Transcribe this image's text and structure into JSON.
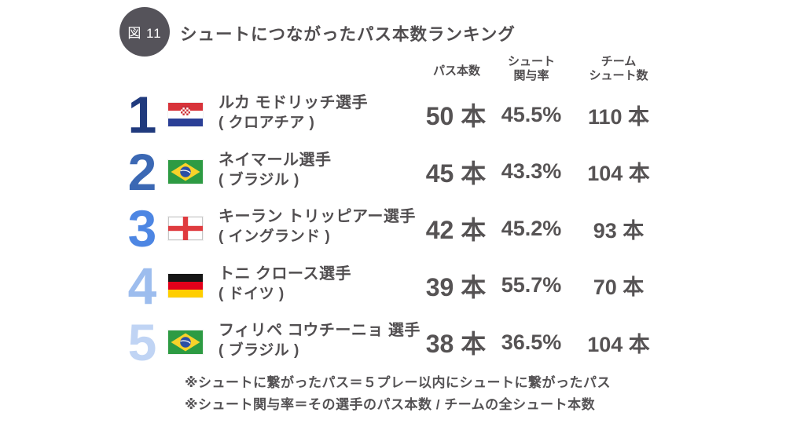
{
  "figure_label": "図 11",
  "title": "シュートにつながったパス本数ランキング",
  "columns": {
    "passes": "パス本数",
    "involvement_line1": "シュート",
    "involvement_line2": "関与率",
    "team_shots_line1": "チーム",
    "team_shots_line2": "シュート数"
  },
  "rows": [
    {
      "rank": "1",
      "rank_color": "#203a7d",
      "flag": "croatia",
      "name": "ルカ モドリッチ選手",
      "country": "( クロアチア )",
      "passes": "50 本",
      "involvement": "45.5%",
      "team_shots": "110 本"
    },
    {
      "rank": "2",
      "rank_color": "#3b68b4",
      "flag": "brazil",
      "name": "ネイマール選手",
      "country": "( ブラジル )",
      "passes": "45 本",
      "involvement": "43.3%",
      "team_shots": "104 本"
    },
    {
      "rank": "3",
      "rank_color": "#4d86e3",
      "flag": "england",
      "name": "キーラン トリッピアー選手",
      "country": "( イングランド )",
      "passes": "42 本",
      "involvement": "45.2%",
      "team_shots": "93 本"
    },
    {
      "rank": "4",
      "rank_color": "#9dbdee",
      "flag": "germany",
      "name": "トニ クロース選手",
      "country": "( ドイツ )",
      "passes": "39 本",
      "involvement": "55.7%",
      "team_shots": "70 本"
    },
    {
      "rank": "5",
      "rank_color": "#c0d4f4",
      "flag": "brazil",
      "name": "フィリペ コウチーニョ 選手",
      "country": "( ブラジル )",
      "passes": "38 本",
      "involvement": "36.5%",
      "team_shots": "104 本"
    }
  ],
  "footnotes": [
    "※シュートに繋がったパス＝５プレー以内にシュートに繋がったパス",
    "※シュート関与率＝その選手のパス本数 / チームの全シュート本数"
  ],
  "colors": {
    "badge_bg": "#55535a",
    "heading_text": "#4f4c4e",
    "value_text": "#565354",
    "rank_colors": [
      "#203a7d",
      "#3b68b4",
      "#4d86e3",
      "#9dbdee",
      "#c0d4f4"
    ]
  },
  "chart_data": {
    "type": "table",
    "title": "シュートにつながったパス本数ランキング",
    "columns": [
      "パス本数",
      "シュート関与率",
      "チームシュート数"
    ],
    "units": [
      "本",
      "%",
      "本"
    ],
    "rows": [
      {
        "rank": 1,
        "player": "ルカ モドリッチ",
        "country": "クロアチア",
        "passes": 50,
        "involvement_pct": 45.5,
        "team_shots": 110
      },
      {
        "rank": 2,
        "player": "ネイマール",
        "country": "ブラジル",
        "passes": 45,
        "involvement_pct": 43.3,
        "team_shots": 104
      },
      {
        "rank": 3,
        "player": "キーラン トリッピアー",
        "country": "イングランド",
        "passes": 42,
        "involvement_pct": 45.2,
        "team_shots": 93
      },
      {
        "rank": 4,
        "player": "トニ クロース",
        "country": "ドイツ",
        "passes": 39,
        "involvement_pct": 55.7,
        "team_shots": 70
      },
      {
        "rank": 5,
        "player": "フィリペ コウチーニョ",
        "country": "ブラジル",
        "passes": 38,
        "involvement_pct": 36.5,
        "team_shots": 104
      }
    ],
    "notes": [
      "シュートに繋がったパス＝５プレー以内にシュートに繋がったパス",
      "シュート関与率＝その選手のパス本数 / チームの全シュート本数"
    ]
  }
}
